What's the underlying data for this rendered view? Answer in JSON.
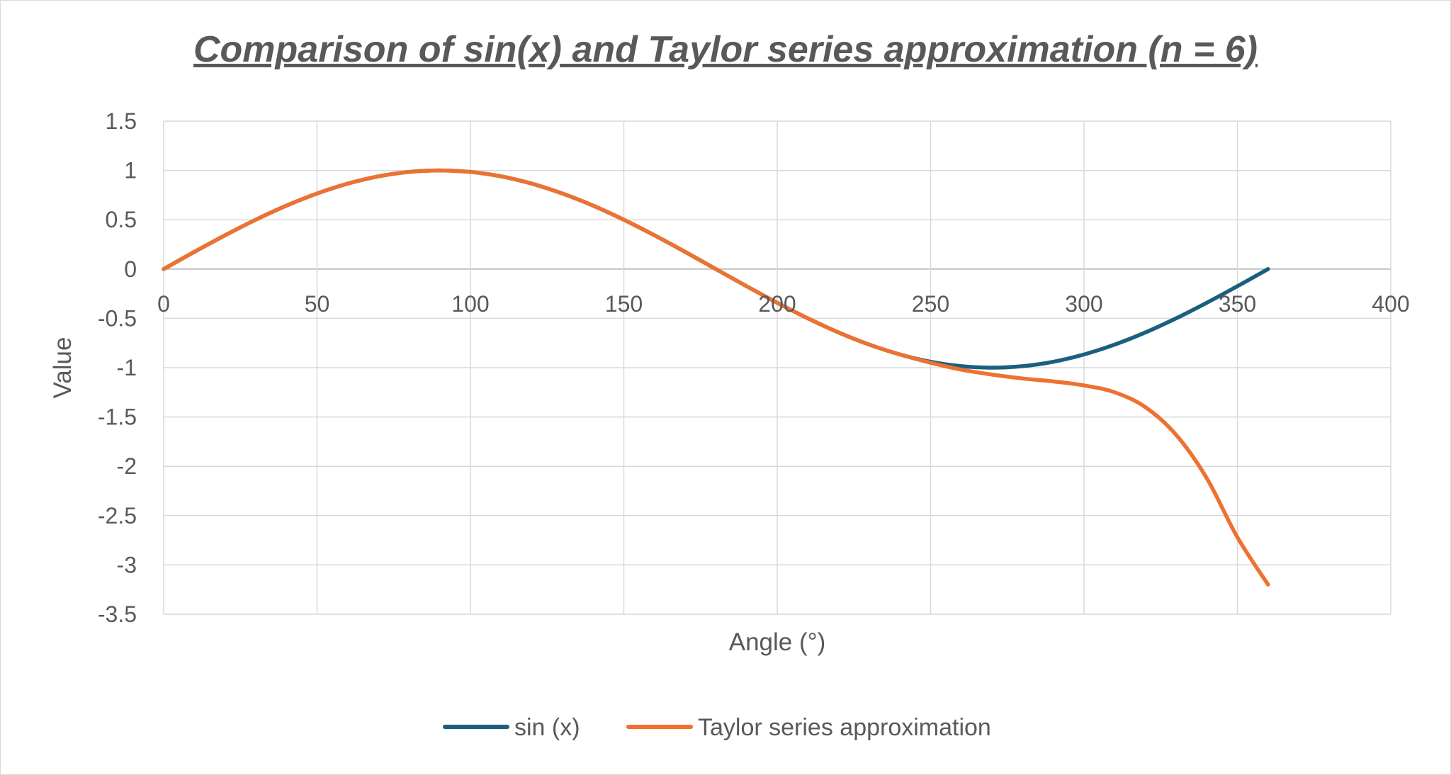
{
  "chart_data": {
    "type": "line",
    "title": "Comparison of sin(x) and Taylor series approximation (n = 6)",
    "xlabel": "Angle (°)",
    "ylabel": "Value",
    "xlim": [
      0,
      400
    ],
    "ylim": [
      -3.5,
      1.5
    ],
    "x_ticks": [
      0,
      50,
      100,
      150,
      200,
      250,
      300,
      350,
      400
    ],
    "y_ticks": [
      1.5,
      1,
      0.5,
      0,
      -0.5,
      -1,
      -1.5,
      -2,
      -2.5,
      -3,
      -3.5
    ],
    "x_tick_labels": [
      "0",
      "50",
      "100",
      "150",
      "200",
      "250",
      "300",
      "350",
      "400"
    ],
    "y_tick_labels": [
      "1.5",
      "1",
      "0.5",
      "0",
      "-0.5",
      "-1",
      "-1.5",
      "-2",
      "-2.5",
      "-3",
      "-3.5"
    ],
    "grid": true,
    "legend_position": "bottom",
    "x": [
      0,
      10,
      20,
      30,
      40,
      50,
      60,
      70,
      80,
      90,
      100,
      110,
      120,
      130,
      140,
      150,
      160,
      170,
      180,
      190,
      200,
      210,
      220,
      230,
      240,
      250,
      260,
      270,
      280,
      290,
      300,
      310,
      320,
      330,
      340,
      350,
      360
    ],
    "series": [
      {
        "name": "sin (x)",
        "color": "#1b5f7e",
        "values": [
          0,
          0.174,
          0.342,
          0.5,
          0.643,
          0.766,
          0.866,
          0.94,
          0.985,
          1,
          0.985,
          0.94,
          0.866,
          0.766,
          0.643,
          0.5,
          0.342,
          0.174,
          0,
          -0.174,
          -0.342,
          -0.5,
          -0.643,
          -0.766,
          -0.866,
          -0.94,
          -0.985,
          -1,
          -0.985,
          -0.94,
          -0.866,
          -0.766,
          -0.643,
          -0.5,
          -0.342,
          -0.174,
          0
        ]
      },
      {
        "name": "Taylor series approximation",
        "color": "#ed7231",
        "values": [
          0,
          0.174,
          0.342,
          0.5,
          0.643,
          0.766,
          0.866,
          0.94,
          0.985,
          1,
          0.985,
          0.94,
          0.866,
          0.766,
          0.643,
          0.5,
          0.342,
          0.174,
          0,
          -0.174,
          -0.342,
          -0.5,
          -0.643,
          -0.766,
          -0.866,
          -0.95,
          -1.02,
          -1.07,
          -1.11,
          -1.14,
          -1.18,
          -1.25,
          -1.4,
          -1.68,
          -2.12,
          -2.72,
          -3.2
        ]
      }
    ]
  }
}
